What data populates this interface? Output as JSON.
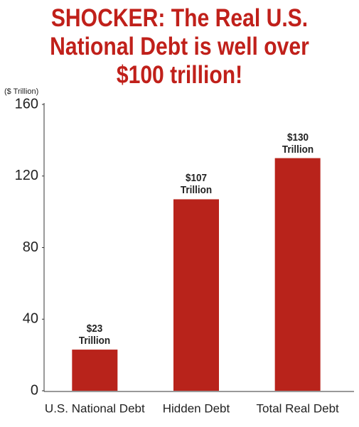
{
  "chart_data": {
    "type": "bar",
    "title": "SHOCKER: The Real U.S.\nNational Debt is well over\n$100 trillion!",
    "y_axis_label": "($ Trillion)",
    "categories": [
      "U.S. National Debt",
      "Hidden Debt",
      "Total Real Debt"
    ],
    "values": [
      23,
      107,
      130
    ],
    "value_labels": [
      "$23\nTrillion",
      "$107\nTrillion",
      "$130\nTrillion"
    ],
    "color": "#b8231b",
    "ylim": [
      0,
      160
    ],
    "yticks": [
      0,
      40,
      80,
      120,
      160
    ],
    "grid": false
  }
}
